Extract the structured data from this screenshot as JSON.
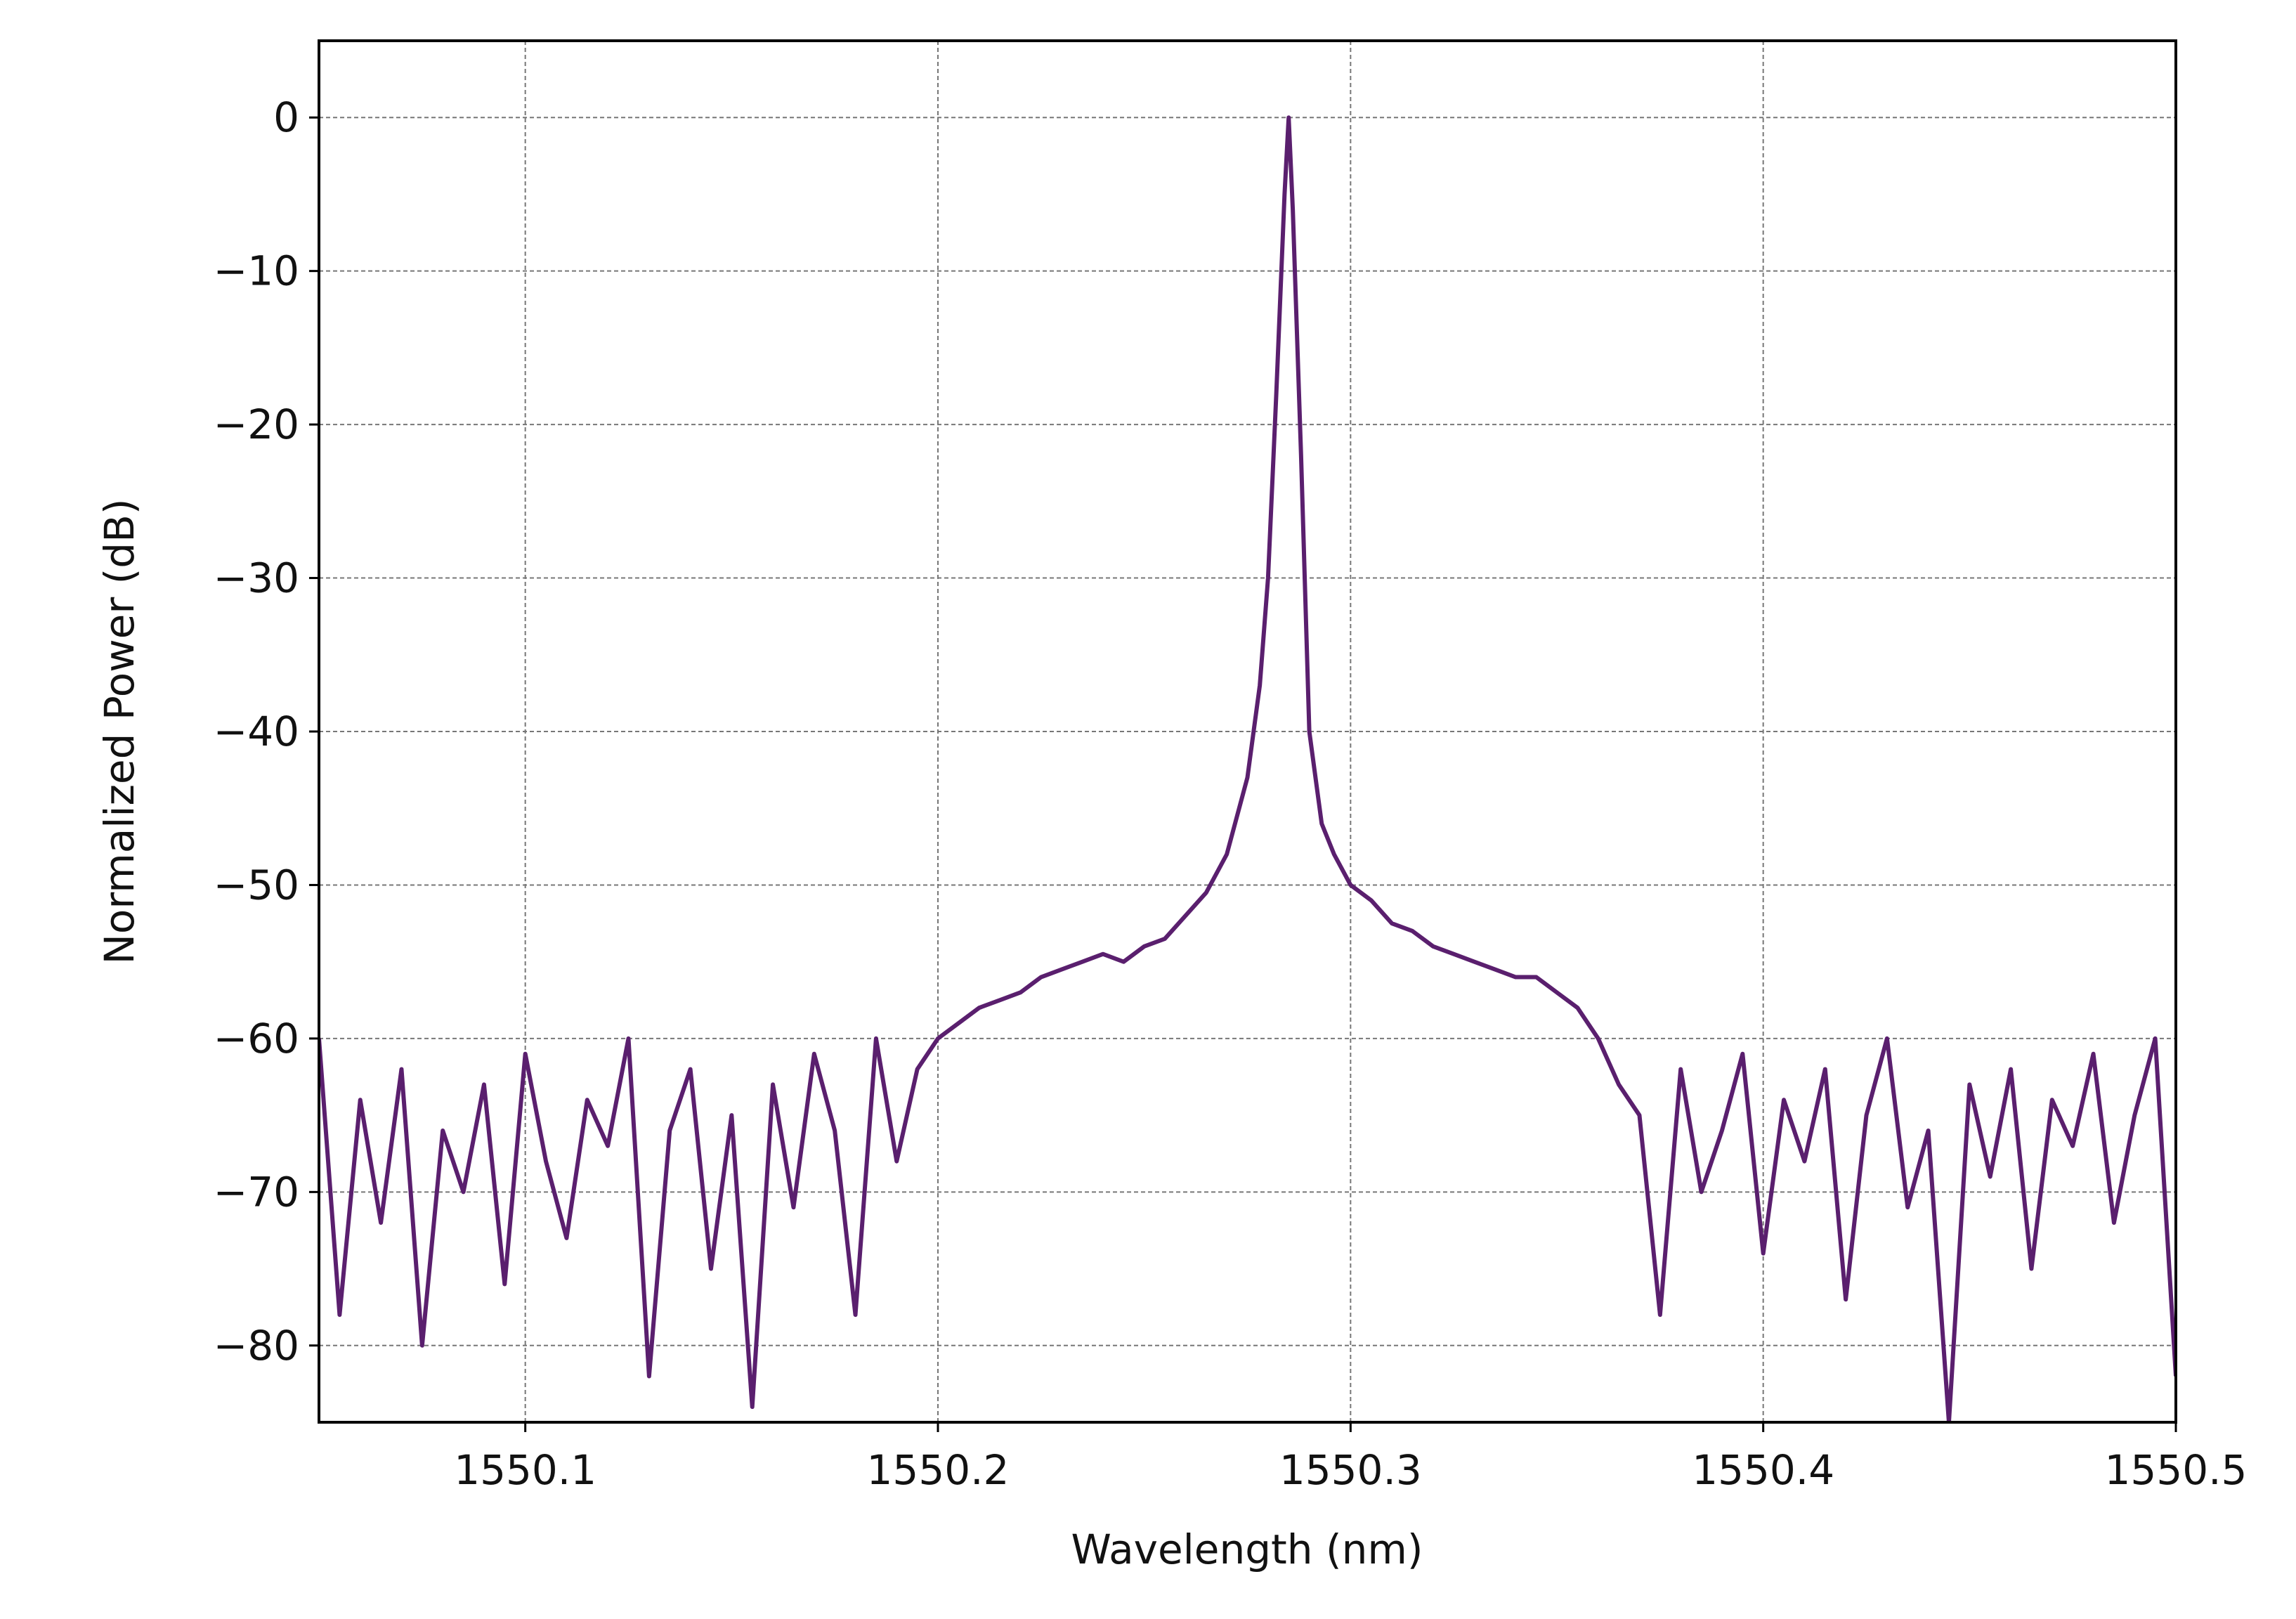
{
  "chart_data": {
    "type": "line",
    "xlabel": "Wavelength (nm)",
    "ylabel": "Normalized Power (dB)",
    "color": "#5a1f6e",
    "grid": true,
    "xlim": [
      1550.05,
      1550.5
    ],
    "ylim": [
      -85,
      5
    ],
    "xticks": [
      1550.1,
      1550.2,
      1550.3,
      1550.4,
      1550.5
    ],
    "yticks": [
      {
        "value": 0,
        "label": "0"
      },
      {
        "value": -10,
        "label": "−10"
      },
      {
        "value": -20,
        "label": "−20"
      },
      {
        "value": -30,
        "label": "−30"
      },
      {
        "value": -40,
        "label": "−40"
      },
      {
        "value": -50,
        "label": "−50"
      },
      {
        "value": -60,
        "label": "−60"
      },
      {
        "value": -70,
        "label": "−70"
      },
      {
        "value": -80,
        "label": "−80"
      }
    ],
    "x": [
      1550.05,
      1550.055,
      1550.06,
      1550.065,
      1550.07,
      1550.075,
      1550.08,
      1550.085,
      1550.09,
      1550.095,
      1550.1,
      1550.105,
      1550.11,
      1550.115,
      1550.12,
      1550.125,
      1550.13,
      1550.135,
      1550.14,
      1550.145,
      1550.15,
      1550.155,
      1550.16,
      1550.165,
      1550.17,
      1550.175,
      1550.18,
      1550.185,
      1550.19,
      1550.195,
      1550.2,
      1550.205,
      1550.21,
      1550.215,
      1550.22,
      1550.225,
      1550.23,
      1550.235,
      1550.24,
      1550.245,
      1550.25,
      1550.255,
      1550.26,
      1550.265,
      1550.27,
      1550.275,
      1550.278,
      1550.28,
      1550.282,
      1550.284,
      1550.285,
      1550.286,
      1550.288,
      1550.29,
      1550.293,
      1550.296,
      1550.3,
      1550.305,
      1550.31,
      1550.315,
      1550.32,
      1550.325,
      1550.33,
      1550.335,
      1550.34,
      1550.345,
      1550.35,
      1550.355,
      1550.36,
      1550.365,
      1550.37,
      1550.375,
      1550.38,
      1550.385,
      1550.39,
      1550.395,
      1550.4,
      1550.405,
      1550.41,
      1550.415,
      1550.42,
      1550.425,
      1550.43,
      1550.435,
      1550.44,
      1550.445,
      1550.45,
      1550.455,
      1550.46,
      1550.465,
      1550.47,
      1550.475,
      1550.48,
      1550.485,
      1550.49,
      1550.495,
      1550.5
    ],
    "values": [
      -60,
      -78,
      -64,
      -72,
      -62,
      -80,
      -66,
      -70,
      -63,
      -76,
      -61,
      -68,
      -73,
      -64,
      -67,
      -60,
      -82,
      -66,
      -62,
      -75,
      -65,
      -84,
      -63,
      -71,
      -61,
      -66,
      -78,
      -60,
      -68,
      -62,
      -60,
      -59,
      -58,
      -57.5,
      -57,
      -56,
      -55.5,
      -55,
      -54.5,
      -55,
      -54,
      -53.5,
      -52,
      -50.5,
      -48,
      -43,
      -37,
      -30,
      -18,
      -5,
      0,
      -6,
      -22,
      -40,
      -46,
      -48,
      -50,
      -51,
      -52.5,
      -53,
      -54,
      -54.5,
      -55,
      -55.5,
      -56,
      -56,
      -57,
      -58,
      -60,
      -63,
      -65,
      -78,
      -62,
      -70,
      -66,
      -61,
      -74,
      -64,
      -68,
      -62,
      -77,
      -65,
      -60,
      -71,
      -66,
      -85,
      -63,
      -69,
      -62,
      -75,
      -64,
      -67,
      -61,
      -72,
      -65,
      -60,
      -82
    ]
  }
}
